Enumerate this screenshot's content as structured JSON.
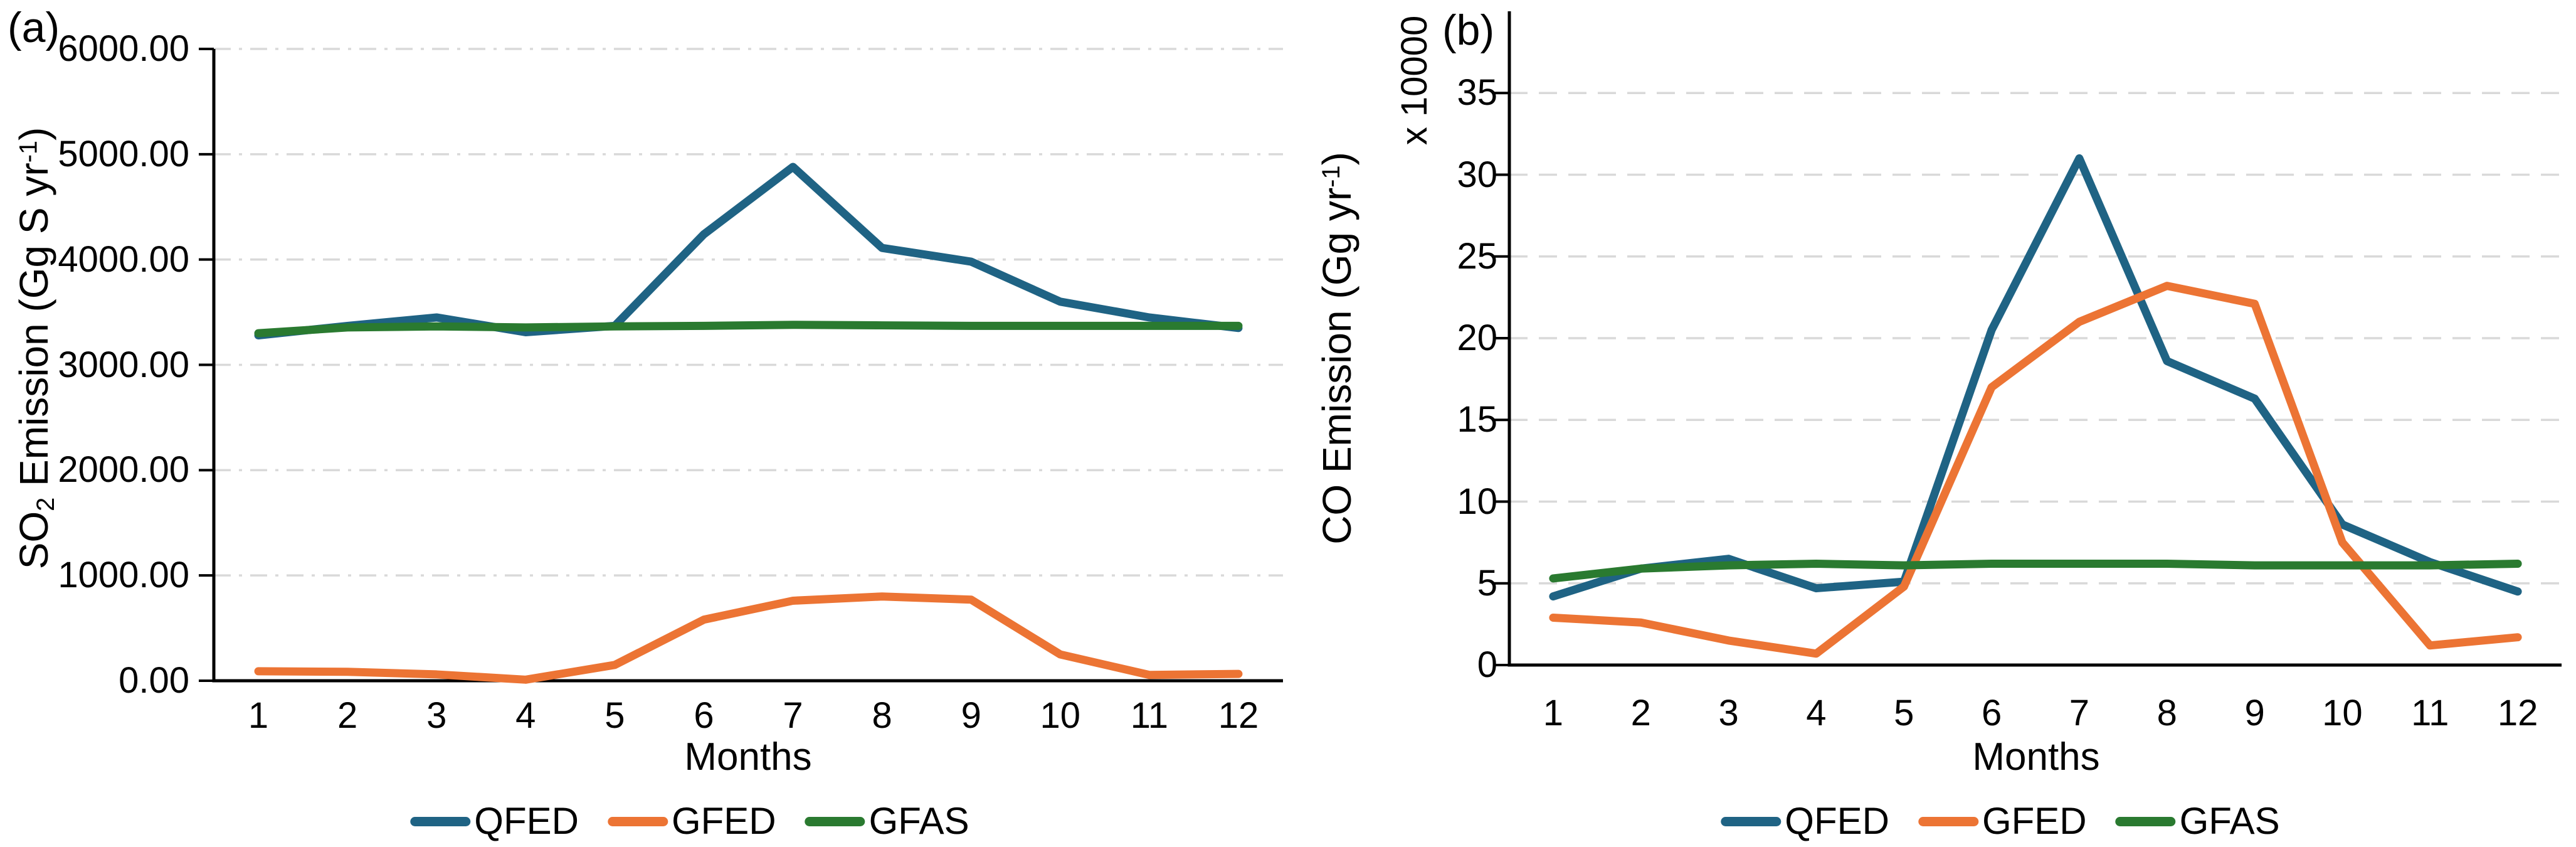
{
  "chart_data": [
    {
      "type": "line",
      "panel_tag": "(a)",
      "xlabel": "Months",
      "ylabel": "SO2 Emission (Gg S yr-1)",
      "ylabel_parts": [
        {
          "text": "SO"
        },
        {
          "sub": "2"
        },
        {
          "text": " Emission (Gg S yr"
        },
        {
          "sup": "-1"
        },
        {
          "text": ")"
        }
      ],
      "categories": [
        "1",
        "2",
        "3",
        "4",
        "5",
        "6",
        "7",
        "8",
        "9",
        "10",
        "11",
        "12"
      ],
      "ylim": [
        0,
        6000
      ],
      "yticks": [
        0,
        1000,
        2000,
        3000,
        4000,
        5000,
        6000
      ],
      "ytick_labels": [
        "0.00",
        "1000.00",
        "2000.00",
        "3000.00",
        "4000.00",
        "5000.00",
        "6000.00"
      ],
      "grid": "dash-dot",
      "grid_color": "#d9d9d9",
      "legend_position": "bottom",
      "series": [
        {
          "name": "QFED",
          "color": "#1f6384",
          "values": [
            3280,
            3370,
            3450,
            3310,
            3370,
            4240,
            4880,
            4110,
            3980,
            3600,
            3450,
            3350
          ]
        },
        {
          "name": "GFED",
          "color": "#ec7434",
          "values": [
            90,
            85,
            60,
            10,
            150,
            580,
            760,
            800,
            770,
            250,
            55,
            65
          ]
        },
        {
          "name": "GFAS",
          "color": "#2a7a30",
          "values": [
            3300,
            3355,
            3365,
            3355,
            3365,
            3370,
            3380,
            3375,
            3370,
            3370,
            3370,
            3370
          ]
        }
      ]
    },
    {
      "type": "line",
      "panel_tag": "(b)",
      "xlabel": "Months",
      "ylabel": "CO Emission (Gg yr-1)",
      "ylabel_parts": [
        {
          "text": "CO Emission (Gg yr"
        },
        {
          "sup": "-1"
        },
        {
          "text": ")"
        }
      ],
      "y_multiplier": "x 10000",
      "categories": [
        "1",
        "2",
        "3",
        "4",
        "5",
        "6",
        "7",
        "8",
        "9",
        "10",
        "11",
        "12"
      ],
      "ylim": [
        0,
        40
      ],
      "yticks": [
        0,
        5,
        10,
        15,
        20,
        25,
        30,
        35
      ],
      "ytick_labels": [
        "0",
        "5",
        "10",
        "15",
        "20",
        "25",
        "30",
        "35"
      ],
      "grid": "dash",
      "grid_color": "#d9d9d9",
      "legend_position": "bottom",
      "series": [
        {
          "name": "QFED",
          "color": "#1f6384",
          "values": [
            4.2,
            5.9,
            6.5,
            4.7,
            5.1,
            20.5,
            31.0,
            18.6,
            16.3,
            8.6,
            6.3,
            4.5
          ]
        },
        {
          "name": "GFED",
          "color": "#ec7434",
          "values": [
            2.9,
            2.6,
            1.5,
            0.7,
            4.8,
            17.0,
            21.0,
            23.2,
            22.1,
            7.5,
            1.2,
            1.7
          ]
        },
        {
          "name": "GFAS",
          "color": "#2a7a30",
          "values": [
            5.3,
            5.9,
            6.1,
            6.2,
            6.1,
            6.2,
            6.2,
            6.2,
            6.1,
            6.1,
            6.1,
            6.2
          ]
        }
      ]
    }
  ]
}
